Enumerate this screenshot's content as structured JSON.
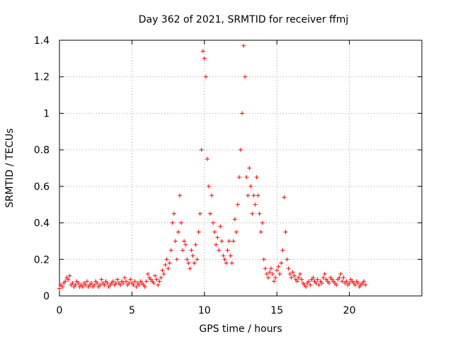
{
  "chart_data": {
    "type": "scatter",
    "title": "Day 362 of 2021, SRMTID for receiver ffmj",
    "xlabel": "GPS time / hours",
    "ylabel": "SRMTID / TECUs",
    "xlim": [
      0,
      25
    ],
    "ylim": [
      0,
      1.4
    ],
    "xticks": [
      0,
      5,
      10,
      15,
      20
    ],
    "yticks": [
      0,
      0.2,
      0.4,
      0.6,
      0.8,
      1,
      1.2,
      1.4
    ],
    "xtick_labels": [
      "0",
      "5",
      "10",
      "15",
      "20"
    ],
    "ytick_labels": [
      "0",
      "0.2",
      "0.4",
      "0.6",
      "0.8",
      "1",
      "1.2",
      "1.4"
    ],
    "grid": true,
    "marker": "+",
    "color": "#ff0000",
    "series": [
      {
        "name": "SRMTID",
        "x_start": 0.0,
        "x_step": 0.1,
        "values": [
          0.04,
          0.06,
          0.05,
          0.07,
          0.08,
          0.1,
          0.09,
          0.11,
          0.06,
          0.07,
          0.05,
          0.06,
          0.08,
          0.07,
          0.05,
          0.06,
          0.05,
          0.07,
          0.06,
          0.08,
          0.05,
          0.06,
          0.07,
          0.05,
          0.06,
          0.08,
          0.07,
          0.05,
          0.06,
          0.09,
          0.07,
          0.06,
          0.08,
          0.07,
          0.05,
          0.06,
          0.07,
          0.08,
          0.06,
          0.07,
          0.09,
          0.07,
          0.06,
          0.08,
          0.07,
          0.1,
          0.08,
          0.06,
          0.07,
          0.09,
          0.07,
          0.06,
          0.08,
          0.05,
          0.07,
          0.06,
          0.08,
          0.07,
          0.06,
          0.05,
          0.08,
          0.12,
          0.1,
          0.09,
          0.08,
          0.07,
          0.11,
          0.09,
          0.06,
          0.08,
          0.1,
          0.14,
          0.12,
          0.17,
          0.2,
          0.15,
          0.18,
          0.25,
          0.4,
          0.45,
          0.3,
          0.2,
          0.35,
          0.55,
          0.4,
          0.25,
          0.3,
          0.28,
          0.2,
          0.18,
          0.15,
          0.25,
          0.22,
          0.18,
          0.28,
          0.2,
          0.35,
          0.45,
          0.8,
          1.34,
          1.3,
          1.2,
          0.75,
          0.6,
          0.45,
          0.55,
          0.4,
          0.35,
          0.28,
          0.32,
          0.25,
          0.38,
          0.3,
          0.22,
          0.2,
          0.18,
          0.25,
          0.3,
          0.22,
          0.18,
          0.3,
          0.42,
          0.35,
          0.5,
          0.65,
          0.8,
          1.0,
          1.37,
          1.2,
          0.65,
          0.55,
          0.7,
          0.6,
          0.45,
          0.55,
          0.5,
          0.65,
          0.55,
          0.45,
          0.35,
          0.4,
          0.2,
          0.15,
          0.12,
          0.1,
          0.13,
          0.15,
          0.12,
          0.08,
          0.1,
          0.14,
          0.16,
          0.12,
          0.18,
          0.25,
          0.54,
          0.35,
          0.2,
          0.15,
          0.12,
          0.1,
          0.13,
          0.11,
          0.09,
          0.08,
          0.1,
          0.12,
          0.09,
          0.07,
          0.06,
          0.05,
          0.07,
          0.08,
          0.06,
          0.09,
          0.1,
          0.08,
          0.07,
          0.09,
          0.06,
          0.08,
          0.07,
          0.1,
          0.12,
          0.09,
          0.08,
          0.07,
          0.1,
          0.09,
          0.08,
          0.07,
          0.06,
          0.09,
          0.1,
          0.12,
          0.08,
          0.1,
          0.07,
          0.08,
          0.06,
          0.07,
          0.09,
          0.08,
          0.07,
          0.06,
          0.08,
          0.07,
          0.05,
          0.06,
          0.07,
          0.08,
          0.06
        ]
      }
    ]
  }
}
